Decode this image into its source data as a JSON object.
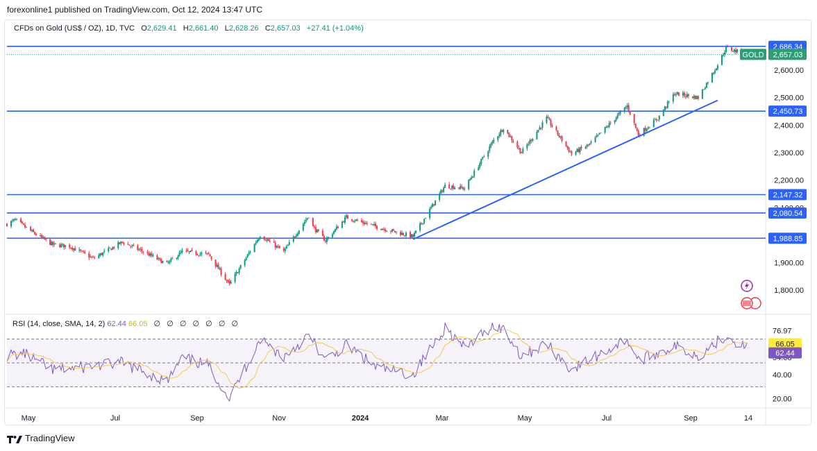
{
  "header": {
    "publisher": "forexonline1 published on TradingView.com, Oct 12, 2024 13:47 UTC"
  },
  "legend": {
    "symbol": "CFDs on Gold (US$ / OZ), 1D, TVC",
    "open_label": "O",
    "open": "2,629.41",
    "high_label": "H",
    "high": "2,661.40",
    "low_label": "L",
    "low": "2,628.26",
    "close_label": "C",
    "close": "2,657.03",
    "change": "+27.41 (+1.04%)"
  },
  "rsi_legend": {
    "label": "RSI (14, close, SMA, 14, 2)",
    "rsi_value": "62.44",
    "sma_value": "66.05",
    "placeholders": [
      "∅",
      "∅",
      "∅",
      "∅",
      "∅",
      "∅",
      "∅"
    ]
  },
  "price_badges": {
    "ticker": "GOLD",
    "current": "2,657.03",
    "level_labels": [
      "2,686.34",
      "2,450.73",
      "2,147.32",
      "2,080.54",
      "1,988.85"
    ]
  },
  "rsi_badges": {
    "sma": "66.05",
    "rsi": "62.44"
  },
  "footer": {
    "brand": "TradingView"
  },
  "colors": {
    "up": "#089981",
    "down": "#f23645",
    "level": "#2962ff",
    "rsi": "#7e57c2",
    "rsi_sma": "#f7c948",
    "badge_green": "#2e9d74",
    "rsi_badge_yellow": "#ffeb3b"
  },
  "chart_data": {
    "type": "candlestick",
    "instrument": "CFDs on Gold (US$ / OZ)",
    "timeframe": "1D",
    "price_axis": {
      "ticks": [
        1800,
        1900,
        2000,
        2100,
        2200,
        2300,
        2400,
        2500,
        2600
      ],
      "tick_labels": [
        "1,800.00",
        "1,900.00",
        "2,000.00",
        "2,100.00",
        "2,200.00",
        "2,300.00",
        "2,400.00",
        "2,500.00",
        "2,600.00"
      ],
      "ylim": [
        1760,
        2720
      ]
    },
    "time_axis": {
      "labels": [
        "May",
        "Jul",
        "Sep",
        "Nov",
        "2024",
        "Mar",
        "May",
        "Jul",
        "Sep",
        "14"
      ]
    },
    "horizontal_levels": [
      2686.34,
      2450.73,
      2147.32,
      2080.54,
      1988.85
    ],
    "trendline": {
      "from": {
        "t": "2024-02-14",
        "price": 1985
      },
      "to": {
        "t": "2024-09-20",
        "price": 2490
      }
    },
    "price_path_close": [
      [
        "2023-04-28",
        2040
      ],
      [
        "2023-05-04",
        2055
      ],
      [
        "2023-05-15",
        2015
      ],
      [
        "2023-05-31",
        1965
      ],
      [
        "2023-06-12",
        1960
      ],
      [
        "2023-06-29",
        1915
      ],
      [
        "2023-07-20",
        1975
      ],
      [
        "2023-08-04",
        1940
      ],
      [
        "2023-08-21",
        1895
      ],
      [
        "2023-09-01",
        1940
      ],
      [
        "2023-09-20",
        1930
      ],
      [
        "2023-10-05",
        1820
      ],
      [
        "2023-10-27",
        2000
      ],
      [
        "2023-11-13",
        1940
      ],
      [
        "2023-12-01",
        2071
      ],
      [
        "2023-12-04",
        2030
      ],
      [
        "2023-12-13",
        1980
      ],
      [
        "2023-12-28",
        2065
      ],
      [
        "2024-01-19",
        2030
      ],
      [
        "2024-02-14",
        1995
      ],
      [
        "2024-03-08",
        2180
      ],
      [
        "2024-03-22",
        2170
      ],
      [
        "2024-04-12",
        2345
      ],
      [
        "2024-04-19",
        2390
      ],
      [
        "2024-05-02",
        2300
      ],
      [
        "2024-05-20",
        2425
      ],
      [
        "2024-06-07",
        2295
      ],
      [
        "2024-06-20",
        2330
      ],
      [
        "2024-07-17",
        2470
      ],
      [
        "2024-07-25",
        2365
      ],
      [
        "2024-08-08",
        2425
      ],
      [
        "2024-08-20",
        2515
      ],
      [
        "2024-09-06",
        2500
      ],
      [
        "2024-09-20",
        2620
      ],
      [
        "2024-09-26",
        2680
      ],
      [
        "2024-10-11",
        2657.03
      ]
    ],
    "rsi": {
      "params": "14, close, SMA, 14, 2",
      "levels": [
        70,
        50,
        30
      ],
      "axis_labels": [
        "20.00",
        "40.00",
        "54.68",
        "76.97"
      ],
      "last_rsi": 62.44,
      "last_sma": 66.05,
      "rsi_path": [
        [
          "2023-04-28",
          56
        ],
        [
          "2023-05-10",
          58
        ],
        [
          "2023-05-31",
          44
        ],
        [
          "2023-06-20",
          46
        ],
        [
          "2023-07-20",
          50
        ],
        [
          "2023-08-21",
          34
        ],
        [
          "2023-09-01",
          54
        ],
        [
          "2023-09-20",
          48
        ],
        [
          "2023-10-05",
          20
        ],
        [
          "2023-10-27",
          70
        ],
        [
          "2023-11-13",
          55
        ],
        [
          "2023-12-01",
          73
        ],
        [
          "2023-12-13",
          52
        ],
        [
          "2023-12-28",
          65
        ],
        [
          "2024-01-19",
          46
        ],
        [
          "2024-02-14",
          40
        ],
        [
          "2024-03-08",
          80
        ],
        [
          "2024-03-22",
          62
        ],
        [
          "2024-04-12",
          82
        ],
        [
          "2024-04-19",
          78
        ],
        [
          "2024-05-02",
          56
        ],
        [
          "2024-05-20",
          66
        ],
        [
          "2024-06-07",
          44
        ],
        [
          "2024-07-17",
          70
        ],
        [
          "2024-07-25",
          52
        ],
        [
          "2024-08-20",
          64
        ],
        [
          "2024-09-06",
          56
        ],
        [
          "2024-09-26",
          73
        ],
        [
          "2024-10-11",
          62.44
        ]
      ]
    }
  }
}
